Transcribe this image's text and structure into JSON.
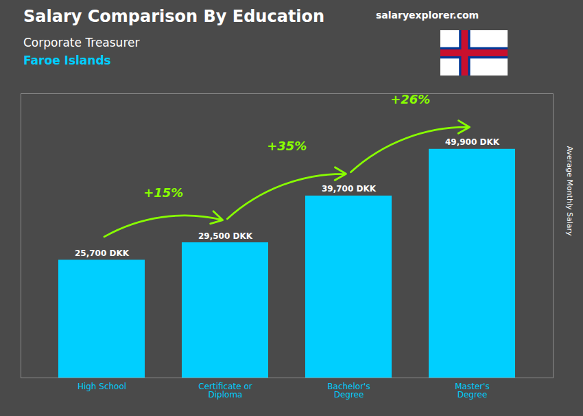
{
  "chart_data": {
    "type": "bar",
    "title": "Salary Comparison By Education",
    "subtitle": [
      "Corporate Treasurer",
      "Faroe Islands"
    ],
    "ylabel": "Average Monthly Salary",
    "categories": [
      "High School",
      "Certificate or\nDiploma",
      "Bachelor's\nDegree",
      "Master's\nDegree"
    ],
    "values": [
      25700,
      29500,
      39700,
      49900
    ],
    "value_labels": [
      "25,700 DKK",
      "29,500 DKK",
      "39,700 DKK",
      "49,900 DKK"
    ],
    "data_labels": true,
    "color": "#00cfff",
    "ylim": [
      0,
      62000
    ],
    "tick_labels": "x",
    "grid": false,
    "annotations": [
      "+15%",
      "+35%",
      "+26%",
      "salaryexplorer.com"
    ]
  }
}
